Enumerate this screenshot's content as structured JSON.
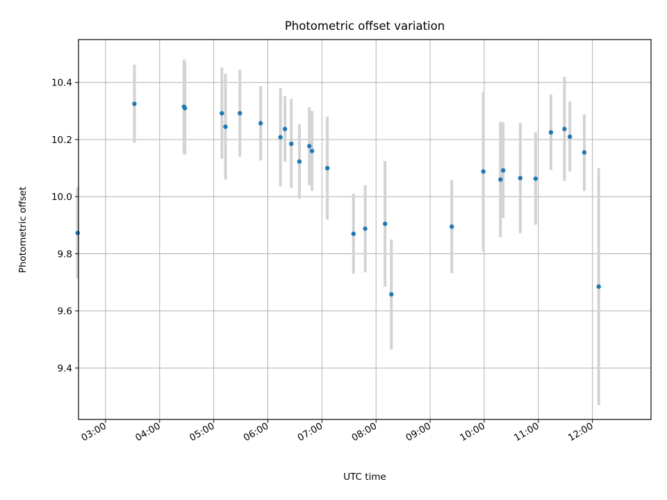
{
  "chart_data": {
    "type": "scatter",
    "title": "Photometric offset variation",
    "xlabel": "UTC time",
    "ylabel": "Photometric offset",
    "xlim": [
      "02:30",
      "13:05"
    ],
    "ylim": [
      9.22,
      10.55
    ],
    "x_ticks": [
      "03:00",
      "04:00",
      "05:00",
      "06:00",
      "07:00",
      "08:00",
      "09:00",
      "10:00",
      "11:00",
      "12:00"
    ],
    "y_ticks": [
      9.4,
      9.6,
      9.8,
      10.0,
      10.2,
      10.4
    ],
    "y_tick_labels": [
      "9.4",
      "9.6",
      "9.8",
      "10.0",
      "10.2",
      "10.4"
    ],
    "grid": true,
    "colors": {
      "points": "#1f77b4",
      "errorbars": "#d3d3d3",
      "grid": "#b0b0b0"
    },
    "points": [
      {
        "t": "02:29",
        "y": 9.873,
        "lo": 9.713,
        "hi": 10.033
      },
      {
        "t": "03:32",
        "y": 10.325,
        "lo": 10.188,
        "hi": 10.462
      },
      {
        "t": "04:27",
        "y": 10.315,
        "lo": 10.15,
        "hi": 10.48
      },
      {
        "t": "04:28",
        "y": 10.31,
        "lo": 10.148,
        "hi": 10.472
      },
      {
        "t": "05:09",
        "y": 10.292,
        "lo": 10.133,
        "hi": 10.452
      },
      {
        "t": "05:13",
        "y": 10.245,
        "lo": 10.06,
        "hi": 10.43
      },
      {
        "t": "05:29",
        "y": 10.292,
        "lo": 10.14,
        "hi": 10.444
      },
      {
        "t": "05:52",
        "y": 10.257,
        "lo": 10.127,
        "hi": 10.387
      },
      {
        "t": "06:14",
        "y": 10.208,
        "lo": 10.036,
        "hi": 10.38
      },
      {
        "t": "06:19",
        "y": 10.237,
        "lo": 10.122,
        "hi": 10.352
      },
      {
        "t": "06:26",
        "y": 10.185,
        "lo": 10.03,
        "hi": 10.342
      },
      {
        "t": "06:35",
        "y": 10.123,
        "lo": 9.992,
        "hi": 10.254
      },
      {
        "t": "06:46",
        "y": 10.177,
        "lo": 10.04,
        "hi": 10.313
      },
      {
        "t": "06:49",
        "y": 10.16,
        "lo": 10.02,
        "hi": 10.3
      },
      {
        "t": "07:06",
        "y": 10.1,
        "lo": 9.92,
        "hi": 10.28
      },
      {
        "t": "07:35",
        "y": 9.87,
        "lo": 9.73,
        "hi": 10.01
      },
      {
        "t": "07:48",
        "y": 9.888,
        "lo": 9.735,
        "hi": 10.04
      },
      {
        "t": "08:10",
        "y": 9.905,
        "lo": 9.685,
        "hi": 10.125
      },
      {
        "t": "08:17",
        "y": 9.658,
        "lo": 9.465,
        "hi": 9.85
      },
      {
        "t": "09:24",
        "y": 9.895,
        "lo": 9.732,
        "hi": 10.058
      },
      {
        "t": "09:59",
        "y": 10.088,
        "lo": 9.808,
        "hi": 10.368
      },
      {
        "t": "10:18",
        "y": 10.06,
        "lo": 9.858,
        "hi": 10.262
      },
      {
        "t": "10:21",
        "y": 10.092,
        "lo": 9.925,
        "hi": 10.26
      },
      {
        "t": "10:40",
        "y": 10.065,
        "lo": 9.872,
        "hi": 10.258
      },
      {
        "t": "10:57",
        "y": 10.063,
        "lo": 9.902,
        "hi": 10.225
      },
      {
        "t": "11:14",
        "y": 10.225,
        "lo": 10.093,
        "hi": 10.358
      },
      {
        "t": "11:29",
        "y": 10.237,
        "lo": 10.055,
        "hi": 10.42
      },
      {
        "t": "11:35",
        "y": 10.21,
        "lo": 10.088,
        "hi": 10.333
      },
      {
        "t": "11:51",
        "y": 10.155,
        "lo": 10.02,
        "hi": 10.288
      },
      {
        "t": "12:07",
        "y": 9.685,
        "lo": 9.27,
        "hi": 10.1
      }
    ]
  }
}
